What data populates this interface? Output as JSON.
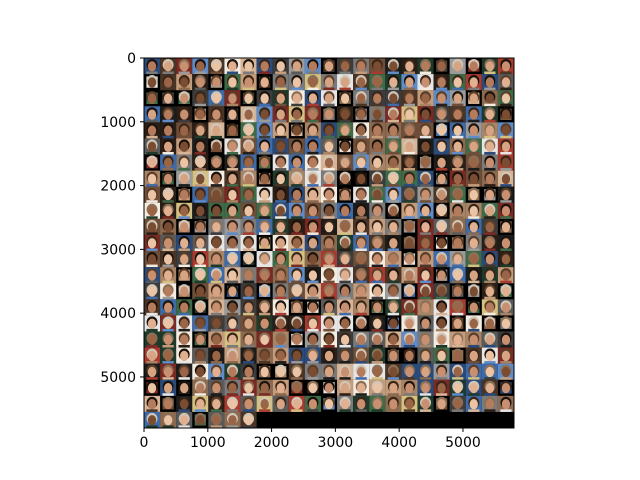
{
  "image": {
    "description_type": "mosaic-of-face-thumbnails",
    "grid": {
      "columns": 23,
      "rows": 23,
      "empty_cells_last_row": 16
    },
    "background_color": "#000000",
    "palette": [
      "#2a1e16",
      "#4a3426",
      "#6e4e38",
      "#8c6a50",
      "#a88466",
      "#c49c7c",
      "#d8b496",
      "#3c3c3c",
      "#5a5a5a",
      "#7a7a7a",
      "#9a9a9a",
      "#e6e6e6",
      "#2b4a7a",
      "#3e6aa8",
      "#5f8cc8",
      "#1f3a2a",
      "#3f6a48",
      "#7a2a22",
      "#a83a30",
      "#d4c080",
      "#1c1c1c",
      "#f4ece0"
    ]
  },
  "axes": {
    "x_ticks": [
      "0",
      "1000",
      "2000",
      "3000",
      "4000",
      "5000"
    ],
    "y_ticks": [
      "0",
      "1000",
      "2000",
      "3000",
      "4000",
      "5000"
    ],
    "x_tick_values": [
      0,
      1000,
      2000,
      3000,
      4000,
      5000
    ],
    "y_tick_values": [
      0,
      1000,
      2000,
      3000,
      4000,
      5000
    ],
    "x_range": [
      0,
      5800
    ],
    "y_range": [
      0,
      5800
    ],
    "y_inverted": true
  }
}
